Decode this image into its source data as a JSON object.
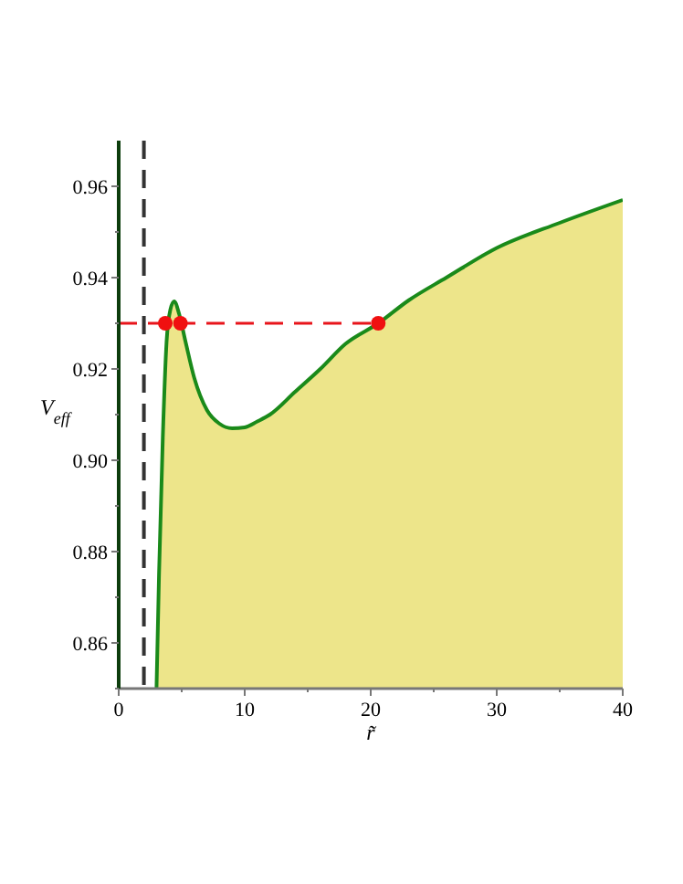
{
  "chart_data": {
    "type": "area",
    "xlabel": "r̃",
    "ylabel": "V$_{eff}$",
    "xlim": [
      0,
      40
    ],
    "ylim": [
      0.85,
      0.97
    ],
    "xticks": [
      0,
      {
        "value": 5,
        "label": null
      },
      10,
      {
        "value": 15,
        "label": null
      },
      20,
      {
        "value": 25,
        "label": null
      },
      30,
      {
        "value": 35,
        "label": null
      },
      40
    ],
    "yticks": [
      {
        "value": 0.85,
        "label": null
      },
      0.86,
      {
        "value": 0.87,
        "label": null
      },
      0.88,
      {
        "value": 0.89,
        "label": null
      },
      {
        "value": 0.9,
        "label": "0.90"
      },
      {
        "value": 0.91,
        "label": null
      },
      0.92,
      {
        "value": 0.93,
        "label": null
      },
      0.94,
      {
        "value": 0.95,
        "label": null
      },
      0.96
    ],
    "grid": false,
    "ref_lines": [
      {
        "axis": "x",
        "value": 2,
        "color": "#333333",
        "line_style": "dashed"
      }
    ],
    "series": [
      {
        "color": "#ede58a",
        "x": [
          3.0,
          3.2,
          3.5,
          3.8,
          4.1,
          4.4,
          4.8,
          5.3,
          6,
          7,
          8,
          9,
          10,
          11,
          12,
          14,
          16,
          18,
          20.6,
          23,
          26,
          30,
          35,
          40
        ],
        "values": [
          0.85,
          0.875,
          0.905,
          0.926,
          0.933,
          0.9348,
          0.932,
          0.926,
          0.918,
          0.911,
          0.908,
          0.907,
          0.9072,
          0.9085,
          0.91,
          0.915,
          0.92,
          0.9255,
          0.93,
          0.935,
          0.94,
          0.9465,
          0.952,
          0.957
        ]
      },
      {
        "type": "line",
        "color": "#e8141b",
        "line_style": "dashed",
        "x": [
          0,
          20.6
        ],
        "values": [
          0.93,
          0.93
        ]
      },
      {
        "type": "scatter",
        "color": "#f01010",
        "marker": "circle",
        "x": [
          3.7,
          4.9,
          20.6
        ],
        "values": [
          0.93,
          0.93,
          0.93
        ]
      }
    ]
  }
}
